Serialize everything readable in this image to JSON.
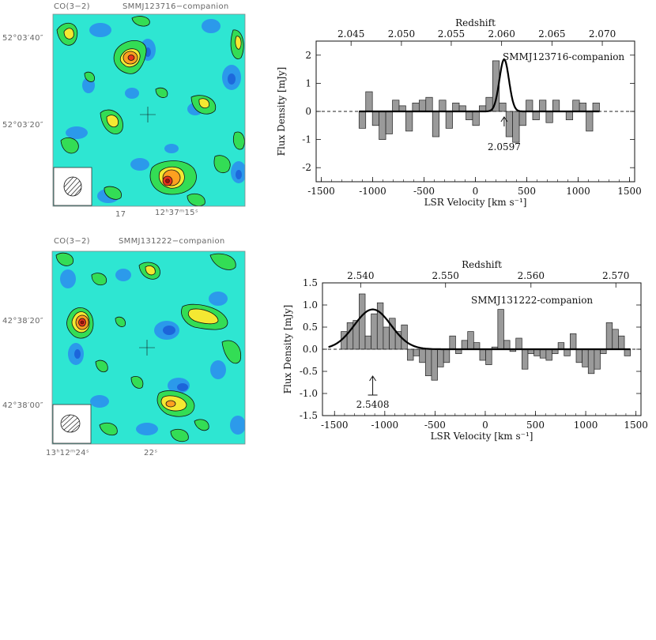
{
  "panels": [
    {
      "map": {
        "line_label": "CO(3−2)",
        "source_label": "SMMJ123716−companion",
        "dec_ticks": [
          "52°03′40″",
          "52°03′20″"
        ],
        "ra_ticks": [
          "17",
          "12ʰ37ᵐ15ˢ"
        ]
      },
      "spectrum_text": {
        "top_axis_title": "Redshift",
        "x_title": "LSR Velocity [km s⁻¹]",
        "y_title": "Flux Density [mJy]",
        "label": "SMMJ123716-companion",
        "arrow_label": "2.0597"
      }
    },
    {
      "map": {
        "line_label": "CO(3−2)",
        "source_label": "SMMJ131222−companion",
        "dec_ticks": [
          "42°38′20″",
          "42°38′00″"
        ],
        "ra_ticks": [
          "13ʰ12ᵐ24ˢ",
          "22ˢ"
        ]
      },
      "spectrum_text": {
        "top_axis_title": "Redshift",
        "x_title": "LSR Velocity [km s⁻¹]",
        "y_title": "Flux Density [mJy]",
        "label": "SMMJ131222-companion",
        "arrow_label": "2.5408"
      }
    }
  ],
  "colors": {
    "map_background": "#2ee6d2",
    "map_low": "#2b8cf0",
    "map_mid": "#33dd55",
    "map_high": "#ffd200",
    "map_peak": "#e8341c",
    "bar_fill": "#9a9a9a"
  },
  "chart_data": [
    {
      "type": "bar",
      "x": [
        -1100,
        -1035,
        -970,
        -905,
        -840,
        -775,
        -710,
        -645,
        -580,
        -515,
        -450,
        -385,
        -320,
        -255,
        -190,
        -125,
        -60,
        5,
        70,
        135,
        200,
        265,
        330,
        395,
        460,
        525,
        590,
        655,
        720,
        785,
        850,
        915,
        980,
        1045,
        1110,
        1175
      ],
      "values": [
        -0.6,
        0.7,
        -0.5,
        -1.0,
        -0.8,
        0.4,
        0.2,
        -0.7,
        0.3,
        0.4,
        0.5,
        -0.9,
        0.4,
        -0.6,
        0.3,
        0.2,
        -0.3,
        -0.5,
        0.2,
        0.5,
        1.8,
        0.3,
        -0.9,
        -1.1,
        -0.5,
        0.4,
        -0.3,
        0.4,
        -0.4,
        0.4,
        0.0,
        -0.3,
        0.4,
        0.3,
        -0.7,
        0.3
      ],
      "model": {
        "type": "gaussian",
        "center": 280,
        "amplitude": 1.85,
        "fwhm": 110
      },
      "xlim": [
        -1550,
        1550
      ],
      "ylim": [
        -2.5,
        2.5
      ],
      "xticks": [
        -1500,
        -1000,
        -500,
        0,
        500,
        1000,
        1500
      ],
      "yticks": [
        -2,
        -1,
        0,
        1,
        2
      ],
      "top_axis": {
        "title": "Redshift",
        "ticks": [
          "2.045",
          "2.050",
          "2.055",
          "2.060",
          "2.065",
          "2.070"
        ],
        "tick_velocity": [
          -1210,
          -720,
          -235,
          255,
          745,
          1235
        ]
      },
      "xlabel": "LSR Velocity [km s⁻¹]",
      "ylabel": "Flux Density [mJy]",
      "annotation": {
        "text": "SMMJ123716-companion",
        "arrow_text": "2.0597",
        "arrow_velocity": 280
      }
    },
    {
      "type": "bar",
      "x": [
        -1405,
        -1345,
        -1285,
        -1225,
        -1165,
        -1105,
        -1045,
        -985,
        -925,
        -865,
        -805,
        -745,
        -685,
        -625,
        -565,
        -505,
        -445,
        -385,
        -325,
        -265,
        -205,
        -145,
        -85,
        -25,
        35,
        95,
        155,
        215,
        275,
        335,
        395,
        455,
        515,
        575,
        635,
        695,
        755,
        815,
        875,
        935,
        995,
        1055,
        1115,
        1175,
        1235,
        1295,
        1355,
        1415
      ],
      "values": [
        0.4,
        0.6,
        0.65,
        1.25,
        0.3,
        0.8,
        1.05,
        0.5,
        0.7,
        0.4,
        0.55,
        -0.25,
        -0.15,
        -0.3,
        -0.6,
        -0.7,
        -0.4,
        -0.3,
        0.3,
        -0.1,
        0.2,
        0.4,
        0.15,
        -0.25,
        -0.35,
        0.05,
        0.9,
        0.2,
        -0.05,
        0.25,
        -0.45,
        -0.1,
        -0.15,
        -0.2,
        -0.25,
        -0.1,
        0.15,
        -0.15,
        0.35,
        -0.3,
        -0.4,
        -0.55,
        -0.45,
        -0.1,
        0.6,
        0.45,
        0.3,
        -0.15
      ],
      "model": {
        "type": "gaussian",
        "center": -1120,
        "amplitude": 0.9,
        "fwhm": 430
      },
      "xlim": [
        -1620,
        1550
      ],
      "ylim": [
        -1.5,
        1.5
      ],
      "xticks": [
        -1500,
        -1000,
        -500,
        0,
        500,
        1000,
        1500
      ],
      "yticks": [
        -1.5,
        -1.0,
        -0.5,
        0.0,
        0.5,
        1.0,
        1.5
      ],
      "top_axis": {
        "title": "Redshift",
        "ticks": [
          "2.540",
          "2.550",
          "2.560",
          "2.570"
        ],
        "tick_velocity": [
          -1240,
          -395,
          455,
          1300
        ]
      },
      "xlabel": "LSR Velocity [km s⁻¹]",
      "ylabel": "Flux Density [mJy]",
      "annotation": {
        "text": "SMMJ131222-companion",
        "arrow_text": "2.5408",
        "arrow_velocity": -1120
      }
    }
  ]
}
